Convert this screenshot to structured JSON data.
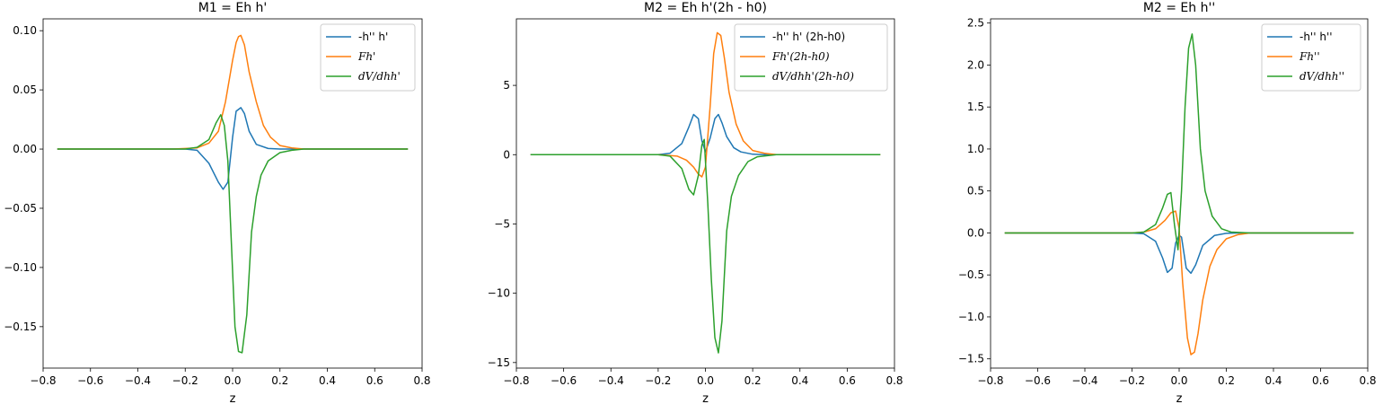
{
  "chart_data": [
    {
      "type": "line",
      "title": "M1 = Eh h'",
      "xlabel": "z",
      "ylabel": "",
      "xlim": [
        -0.8,
        0.8
      ],
      "ylim": [
        -0.185,
        0.11
      ],
      "xticks": [
        -0.8,
        -0.6,
        -0.4,
        -0.2,
        0.0,
        0.2,
        0.4,
        0.6,
        0.8
      ],
      "xtick_labels": [
        "−0.8",
        "−0.6",
        "−0.4",
        "−0.2",
        "0.0",
        "0.2",
        "0.4",
        "0.6",
        "0.8"
      ],
      "yticks": [
        -0.15,
        -0.1,
        -0.05,
        0.0,
        0.05,
        0.1
      ],
      "ytick_labels": [
        "−0.15",
        "−0.10",
        "−0.05",
        "0.00",
        "0.05",
        "0.10"
      ],
      "grid": false,
      "legend_position": "top-right",
      "series": [
        {
          "name": "-h'' h'",
          "color": "#1f77b4",
          "x": [
            -0.74,
            -0.2,
            -0.15,
            -0.1,
            -0.06,
            -0.04,
            -0.02,
            0.0,
            0.015,
            0.035,
            0.05,
            0.07,
            0.1,
            0.15,
            0.2,
            0.74
          ],
          "y": [
            0,
            0,
            -0.001,
            -0.012,
            -0.028,
            -0.034,
            -0.028,
            0.01,
            0.032,
            0.035,
            0.03,
            0.015,
            0.004,
            0.0005,
            0,
            0
          ]
        },
        {
          "name": "Fh'",
          "color": "#ff7f0e",
          "x": [
            -0.74,
            -0.25,
            -0.15,
            -0.1,
            -0.06,
            -0.03,
            0.0,
            0.015,
            0.025,
            0.035,
            0.05,
            0.07,
            0.1,
            0.13,
            0.16,
            0.2,
            0.25,
            0.3,
            0.74
          ],
          "y": [
            0,
            0,
            0.001,
            0.005,
            0.015,
            0.04,
            0.075,
            0.09,
            0.095,
            0.096,
            0.088,
            0.065,
            0.04,
            0.02,
            0.01,
            0.003,
            0.001,
            0,
            0
          ]
        },
        {
          "name": "dV/dhh'",
          "color": "#2ca02c",
          "x": [
            -0.74,
            -0.2,
            -0.15,
            -0.1,
            -0.07,
            -0.05,
            -0.035,
            -0.02,
            -0.005,
            0.01,
            0.025,
            0.04,
            0.06,
            0.08,
            0.1,
            0.12,
            0.15,
            0.2,
            0.25,
            0.3,
            0.74
          ],
          "y": [
            0,
            0,
            0.0015,
            0.008,
            0.022,
            0.029,
            0.02,
            -0.01,
            -0.08,
            -0.15,
            -0.171,
            -0.172,
            -0.14,
            -0.07,
            -0.04,
            -0.022,
            -0.01,
            -0.003,
            -0.001,
            0,
            0
          ]
        }
      ]
    },
    {
      "type": "line",
      "title": "M2 = Eh h'(2h - h0)",
      "xlabel": "z",
      "ylabel": "",
      "xlim": [
        -0.8,
        0.8
      ],
      "ylim": [
        -15.4,
        9.8
      ],
      "xticks": [
        -0.8,
        -0.6,
        -0.4,
        -0.2,
        0.0,
        0.2,
        0.4,
        0.6,
        0.8
      ],
      "xtick_labels": [
        "−0.8",
        "−0.6",
        "−0.4",
        "−0.2",
        "0.0",
        "0.2",
        "0.4",
        "0.6",
        "0.8"
      ],
      "yticks": [
        -15,
        -10,
        -5,
        0,
        5
      ],
      "ytick_labels": [
        "−15",
        "−10",
        "−5",
        "0",
        "5"
      ],
      "grid": false,
      "legend_position": "top-right",
      "series": [
        {
          "name": "-h'' h' (2h-h0)",
          "color": "#1f77b4",
          "x": [
            -0.74,
            -0.2,
            -0.15,
            -0.1,
            -0.07,
            -0.05,
            -0.03,
            -0.015,
            0.0,
            0.02,
            0.04,
            0.055,
            0.07,
            0.09,
            0.12,
            0.15,
            0.2,
            0.25,
            0.74
          ],
          "y": [
            0,
            0,
            0.1,
            0.8,
            2.0,
            2.9,
            2.6,
            1.0,
            0.2,
            1.2,
            2.6,
            2.9,
            2.3,
            1.3,
            0.5,
            0.2,
            0.03,
            0,
            0
          ]
        },
        {
          "name": "Fh'(2h-h0)",
          "color": "#ff7f0e",
          "x": [
            -0.74,
            -0.2,
            -0.12,
            -0.08,
            -0.05,
            -0.03,
            -0.015,
            0.0,
            0.02,
            0.035,
            0.05,
            0.065,
            0.08,
            0.1,
            0.13,
            0.16,
            0.2,
            0.25,
            0.3,
            0.74
          ],
          "y": [
            0,
            0,
            -0.1,
            -0.4,
            -0.9,
            -1.4,
            -1.6,
            -0.9,
            3.5,
            7.3,
            8.8,
            8.6,
            7.0,
            4.5,
            2.2,
            1.0,
            0.3,
            0.1,
            0,
            0
          ]
        },
        {
          "name": "dV/dhh'(2h-h0)",
          "color": "#2ca02c",
          "x": [
            -0.74,
            -0.2,
            -0.15,
            -0.1,
            -0.07,
            -0.05,
            -0.03,
            -0.015,
            -0.005,
            0.01,
            0.025,
            0.04,
            0.055,
            0.07,
            0.09,
            0.11,
            0.14,
            0.18,
            0.22,
            0.3,
            0.74
          ],
          "y": [
            0,
            0,
            -0.1,
            -1.0,
            -2.5,
            -2.9,
            -1.5,
            0.7,
            1.1,
            -3.5,
            -9.0,
            -13.2,
            -14.3,
            -12.0,
            -5.5,
            -3.0,
            -1.5,
            -0.5,
            -0.15,
            0,
            0
          ]
        }
      ]
    },
    {
      "type": "line",
      "title": "M2 = Eh h''",
      "xlabel": "z",
      "ylabel": "",
      "xlim": [
        -0.8,
        0.8
      ],
      "ylim": [
        -1.61,
        2.55
      ],
      "xticks": [
        -0.8,
        -0.6,
        -0.4,
        -0.2,
        0.0,
        0.2,
        0.4,
        0.6,
        0.8
      ],
      "xtick_labels": [
        "−0.8",
        "−0.6",
        "−0.4",
        "−0.2",
        "0.0",
        "0.2",
        "0.4",
        "0.6",
        "0.8"
      ],
      "yticks": [
        -1.5,
        -1.0,
        -0.5,
        0.0,
        0.5,
        1.0,
        1.5,
        2.0,
        2.5
      ],
      "ytick_labels": [
        "−1.5",
        "−1.0",
        "−0.5",
        "0.0",
        "0.5",
        "1.0",
        "1.5",
        "2.0",
        "2.5"
      ],
      "grid": false,
      "legend_position": "top-right",
      "series": [
        {
          "name": "-h'' h''",
          "color": "#1f77b4",
          "x": [
            -0.74,
            -0.2,
            -0.15,
            -0.1,
            -0.07,
            -0.05,
            -0.03,
            -0.015,
            0.0,
            0.01,
            0.03,
            0.05,
            0.07,
            0.1,
            0.15,
            0.2,
            0.25,
            0.74
          ],
          "y": [
            0,
            0,
            -0.01,
            -0.1,
            -0.3,
            -0.47,
            -0.42,
            -0.12,
            -0.03,
            -0.05,
            -0.42,
            -0.48,
            -0.38,
            -0.15,
            -0.03,
            -0.005,
            0,
            0
          ]
        },
        {
          "name": "Fh''",
          "color": "#ff7f0e",
          "x": [
            -0.74,
            -0.2,
            -0.15,
            -0.1,
            -0.06,
            -0.035,
            -0.015,
            0.0,
            0.015,
            0.035,
            0.05,
            0.065,
            0.08,
            0.1,
            0.13,
            0.16,
            0.2,
            0.25,
            0.3,
            0.74
          ],
          "y": [
            0,
            0,
            0.01,
            0.05,
            0.15,
            0.24,
            0.26,
            0.05,
            -0.6,
            -1.25,
            -1.45,
            -1.42,
            -1.2,
            -0.8,
            -0.4,
            -0.2,
            -0.07,
            -0.02,
            0,
            0
          ]
        },
        {
          "name": "dV/dhh''",
          "color": "#2ca02c",
          "x": [
            -0.74,
            -0.2,
            -0.15,
            -0.1,
            -0.07,
            -0.05,
            -0.035,
            -0.02,
            -0.005,
            0.01,
            0.025,
            0.04,
            0.055,
            0.07,
            0.09,
            0.11,
            0.14,
            0.18,
            0.22,
            0.3,
            0.74
          ],
          "y": [
            0,
            0,
            0.01,
            0.1,
            0.3,
            0.46,
            0.48,
            0.1,
            -0.2,
            0.5,
            1.5,
            2.2,
            2.37,
            2.0,
            1.0,
            0.5,
            0.2,
            0.05,
            0.01,
            0,
            0
          ]
        }
      ]
    }
  ]
}
